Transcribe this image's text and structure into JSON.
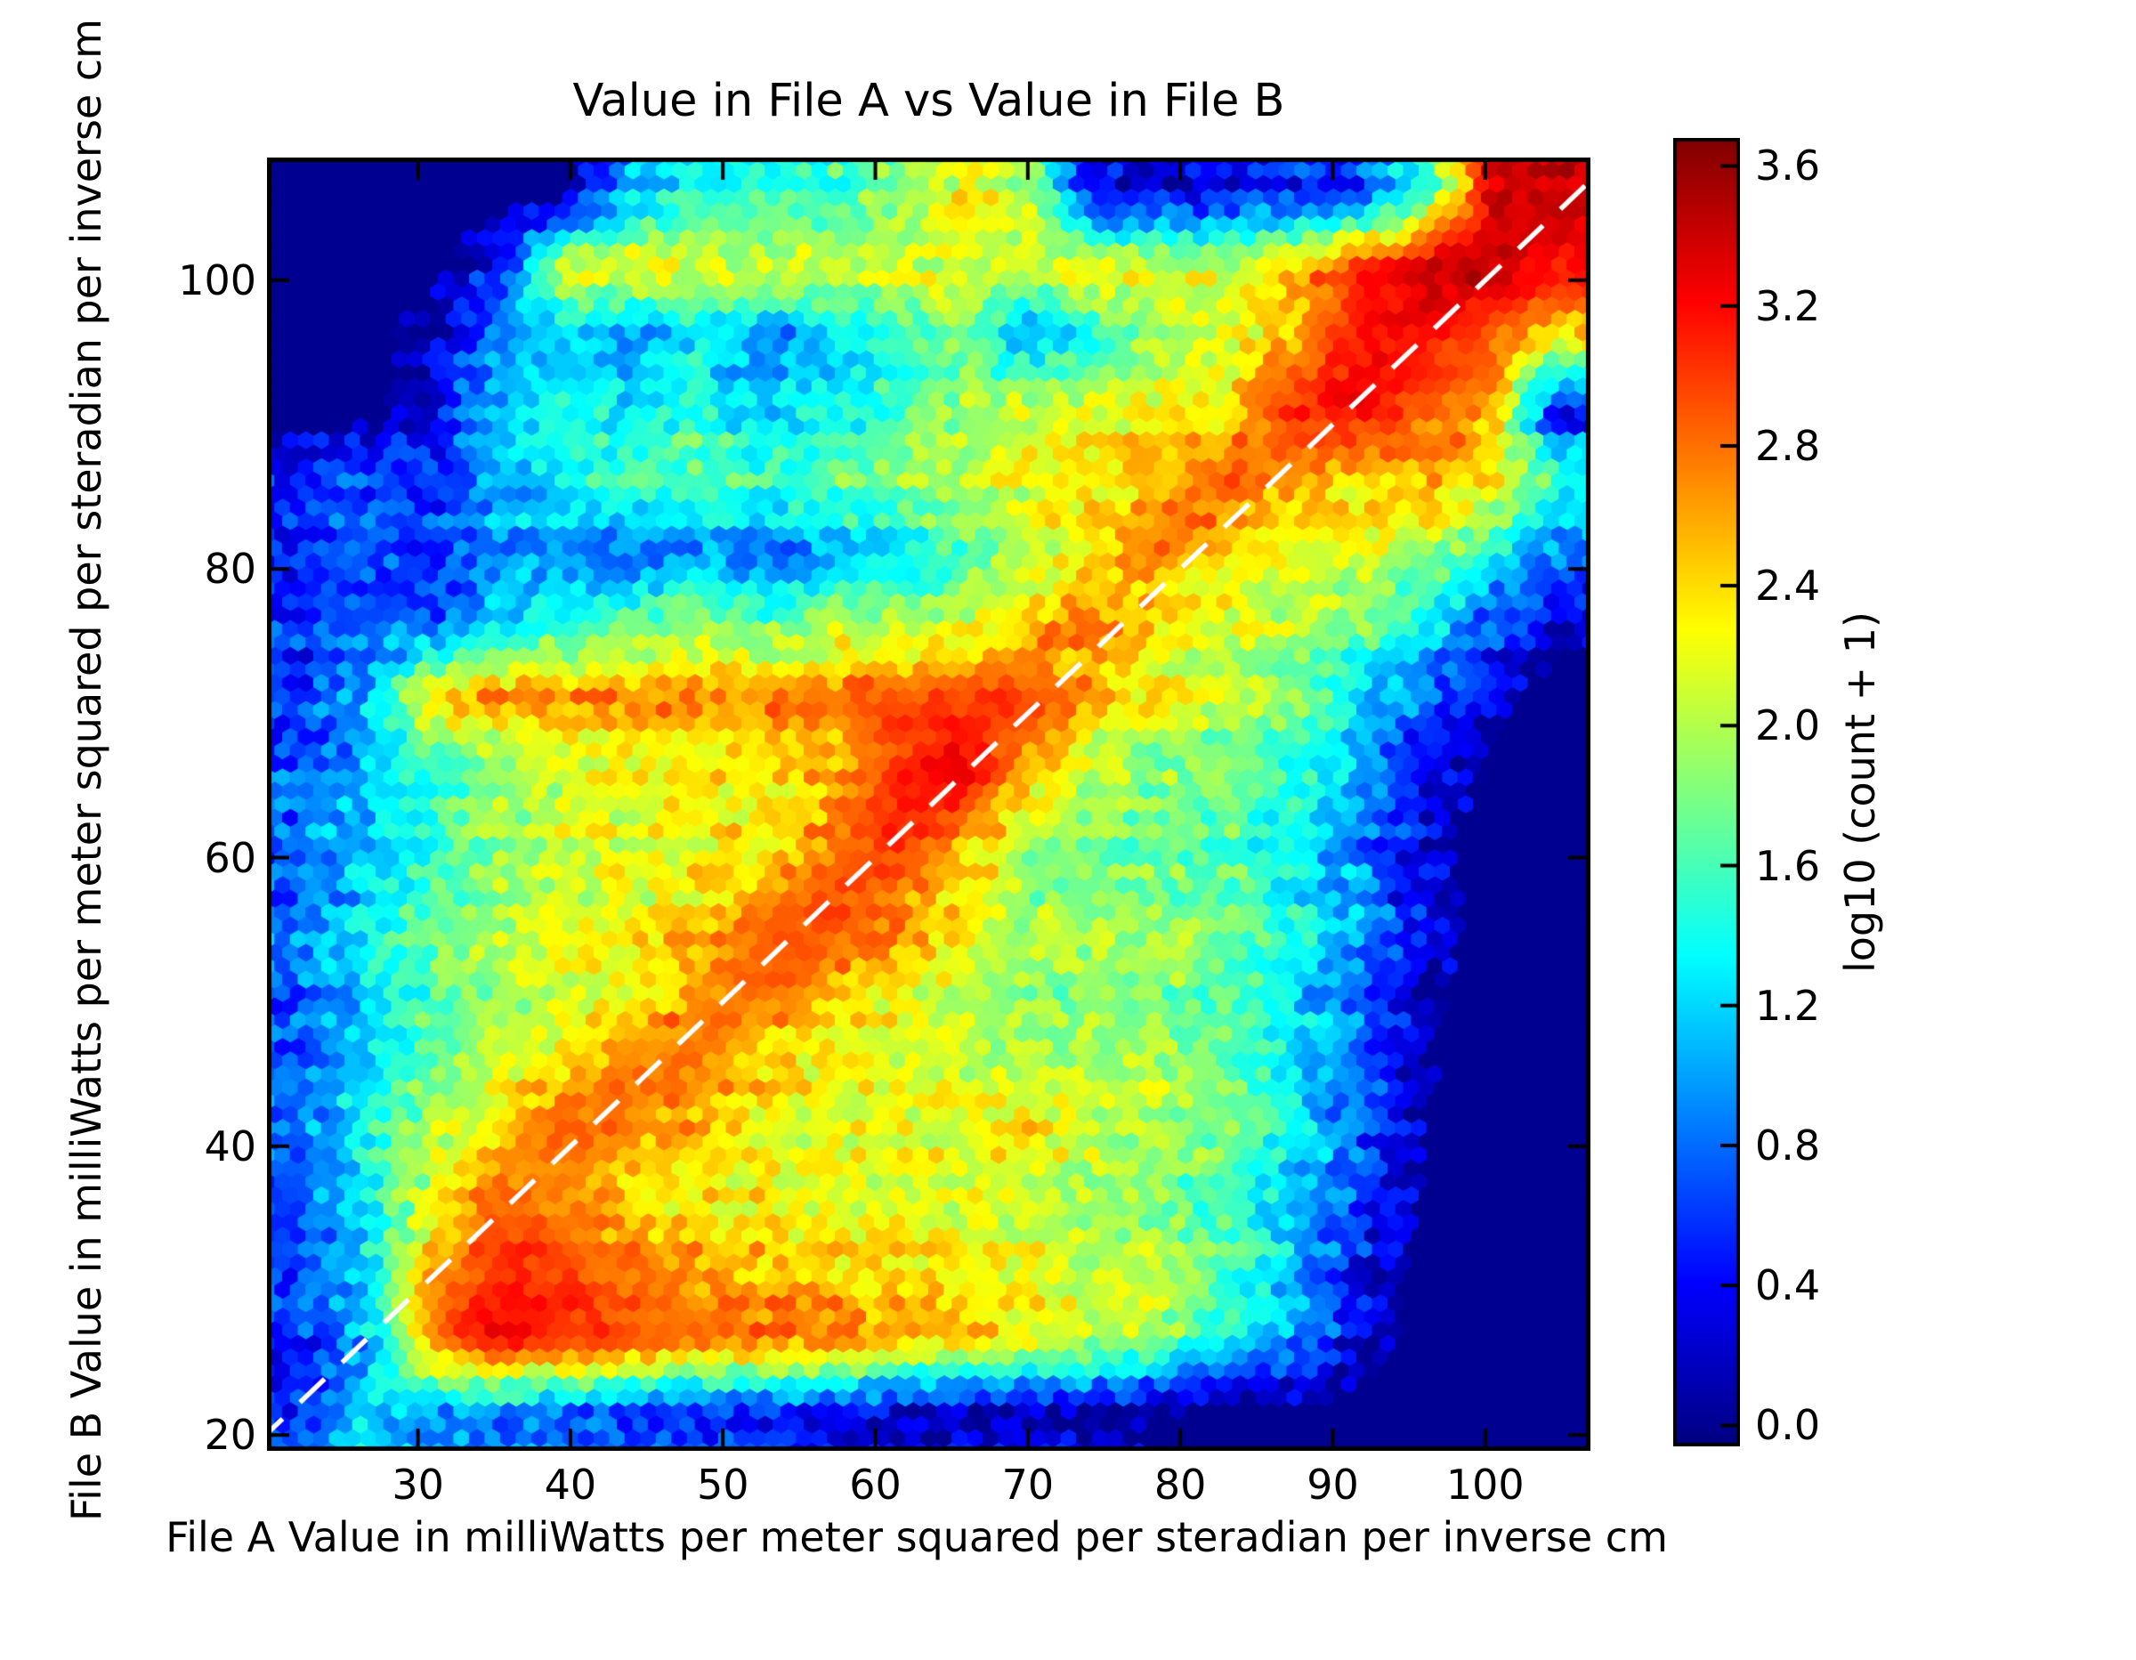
{
  "figure": {
    "background": "#ffffff",
    "text_color": "#000000",
    "frame_color": "#000000"
  },
  "chart_data": {
    "type": "hexbin",
    "title": "Value in File A vs Value in File B",
    "xlabel": "File A Value in milliWatts per meter squared per steradian per inverse cm",
    "ylabel": "File B Value in milliWatts per meter squared per steradian per inverse cm",
    "colorbar_label": "log10 (count + 1)",
    "colormap": "jet",
    "x_range": [
      20.1,
      106.9
    ],
    "y_range": [
      18.9,
      108.5
    ],
    "x_ticks": {
      "values": [
        30,
        40,
        50,
        60,
        70,
        80,
        90,
        100
      ],
      "labels": [
        "30",
        "40",
        "50",
        "60",
        "70",
        "80",
        "90",
        "100"
      ]
    },
    "y_ticks": {
      "values": [
        20,
        40,
        60,
        80,
        100
      ],
      "labels": [
        "20",
        "40",
        "60",
        "80",
        "100"
      ]
    },
    "colorbar_ticks": {
      "values": [
        0.0,
        0.4,
        0.8,
        1.2,
        1.6,
        2.0,
        2.4,
        2.8,
        3.2,
        3.6
      ],
      "labels": [
        "0.0",
        "0.4",
        "0.8",
        "1.2",
        "1.6",
        "2.0",
        "2.4",
        "2.8",
        "3.2",
        "3.6"
      ]
    },
    "color_range": [
      -0.06,
      3.68
    ],
    "identity_line": {
      "equation": "y = x",
      "color": "#ffffff",
      "style": "dashed",
      "dash": [
        38,
        27
      ],
      "width": 5.5,
      "from": 14,
      "to": 112
    },
    "hex": {
      "columns": 85,
      "noise": 0.5,
      "row_noise": 0.28,
      "zero_threshold": 0.13,
      "high_value_noise_scale": 0.5
    },
    "density_grid_note": "Estimated log10(count+1) density sampled on a 20(x) by 18(y) grid over x_range/y_range; rows ordered top (y=108.5) to bottom (y=18.9), columns left (x=20.1) to right (x=106.9).",
    "density_grid": [
      [
        0,
        0,
        0,
        0,
        0,
        1.0,
        1.4,
        1.4,
        1.5,
        1.8,
        2.2,
        2.0,
        0.3,
        0.2,
        0.3,
        0.5,
        0.6,
        1.5,
        3.3,
        3.4
      ],
      [
        0,
        0,
        0,
        0.4,
        2.2,
        2.3,
        2.2,
        2.1,
        2.2,
        2.1,
        2.2,
        2.1,
        2.2,
        2.2,
        2.0,
        2.4,
        3.0,
        3.4,
        3.5,
        3.2
      ],
      [
        0,
        0,
        0.3,
        1.0,
        1.2,
        1.0,
        1.3,
        0.9,
        1.2,
        1.5,
        1.8,
        1.0,
        1.5,
        2.0,
        2.2,
        2.6,
        3.2,
        3.2,
        2.9,
        2.5
      ],
      [
        0,
        0,
        0.4,
        1.2,
        1.5,
        1.3,
        1.6,
        1.2,
        1.4,
        1.6,
        2.0,
        2.2,
        2.2,
        2.3,
        2.4,
        3.1,
        3.3,
        2.9,
        2.7,
        0.4
      ],
      [
        0.5,
        0.7,
        0.5,
        1.0,
        1.4,
        1.5,
        1.7,
        1.5,
        1.7,
        1.8,
        2.0,
        2.2,
        2.3,
        2.5,
        2.9,
        2.7,
        2.4,
        2.5,
        2.3,
        1.5
      ],
      [
        0.6,
        0.8,
        0.6,
        1.0,
        1.1,
        0.8,
        1.0,
        0.8,
        1.1,
        1.3,
        1.7,
        2.0,
        2.4,
        2.9,
        2.4,
        2.2,
        2.2,
        2.1,
        1.5,
        1.0
      ],
      [
        0.6,
        0.9,
        0.7,
        1.2,
        1.5,
        1.7,
        1.9,
        1.7,
        1.9,
        2.0,
        2.1,
        2.4,
        2.8,
        2.3,
        2.1,
        2.0,
        1.8,
        1.3,
        0.7,
        0.2
      ],
      [
        0.5,
        1.0,
        2.4,
        2.6,
        2.6,
        2.7,
        2.7,
        2.7,
        2.8,
        2.9,
        2.9,
        3.0,
        2.5,
        2.2,
        2.0,
        1.8,
        1.2,
        0.7,
        0.2,
        0
      ],
      [
        0.7,
        1.1,
        1.5,
        1.9,
        2.1,
        2.2,
        2.2,
        2.3,
        2.5,
        3.0,
        3.4,
        2.6,
        2.0,
        1.8,
        1.7,
        1.5,
        1.1,
        0.4,
        0.1,
        0
      ],
      [
        0.8,
        1.2,
        1.6,
        2.0,
        2.1,
        2.2,
        2.3,
        2.4,
        2.7,
        3.1,
        2.7,
        2.0,
        1.8,
        1.8,
        1.7,
        1.4,
        1.0,
        0.3,
        0,
        0
      ],
      [
        0.8,
        1.2,
        1.6,
        1.9,
        2.1,
        2.2,
        2.3,
        2.7,
        3.0,
        2.7,
        2.3,
        1.9,
        1.8,
        1.8,
        1.7,
        1.3,
        0.9,
        0.3,
        0,
        0
      ],
      [
        0.8,
        1.3,
        1.7,
        2.0,
        2.1,
        2.3,
        2.7,
        2.9,
        2.6,
        2.3,
        2.1,
        1.9,
        1.9,
        1.9,
        1.7,
        1.3,
        0.8,
        0.2,
        0,
        0
      ],
      [
        0.8,
        1.3,
        1.8,
        2.1,
        2.4,
        2.8,
        2.8,
        2.5,
        2.3,
        2.2,
        2.1,
        2.0,
        2.0,
        2.0,
        1.8,
        1.4,
        0.8,
        0.2,
        0,
        0
      ],
      [
        0.8,
        1.4,
        1.9,
        2.4,
        2.9,
        2.8,
        2.5,
        2.3,
        2.2,
        2.2,
        2.2,
        2.4,
        2.1,
        2.0,
        1.8,
        1.3,
        0.7,
        0.1,
        0,
        0
      ],
      [
        0.7,
        1.3,
        2.2,
        2.9,
        2.7,
        2.4,
        2.3,
        2.3,
        2.2,
        2.2,
        2.1,
        2.0,
        1.9,
        1.8,
        1.6,
        1.2,
        0.6,
        0.1,
        0,
        0
      ],
      [
        0.6,
        1.2,
        2.6,
        3.1,
        3.0,
        2.8,
        2.6,
        2.5,
        2.4,
        2.4,
        2.3,
        2.2,
        2.1,
        2.0,
        1.6,
        1.1,
        0.4,
        0,
        0,
        0
      ],
      [
        0.5,
        1.0,
        2.8,
        3.2,
        3.0,
        2.9,
        2.8,
        2.7,
        2.7,
        2.5,
        2.4,
        2.2,
        2.0,
        1.8,
        1.4,
        0.9,
        0.3,
        0,
        0,
        0
      ],
      [
        0.6,
        1.3,
        1.0,
        0.9,
        0.8,
        0.7,
        0.6,
        0.5,
        0.4,
        0.3,
        0.2,
        0.3,
        0.2,
        0.1,
        0,
        0,
        0,
        0,
        0,
        0
      ]
    ]
  }
}
